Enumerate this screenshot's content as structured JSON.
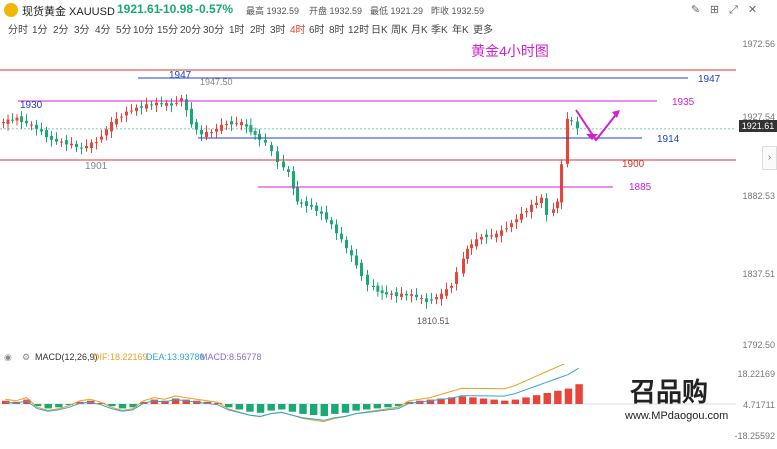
{
  "header": {
    "symbol": "现货黄金 XAUUSD",
    "price": "1921.61",
    "change": "-10.98",
    "change_pct": "-0.57%",
    "high_label": "最高 1932.59",
    "open_label": "开盘 1932.59",
    "low_label": "最低 1921.29",
    "prev_close_label": "昨收 1932.59",
    "price_color": "#19a974"
  },
  "timeframes": [
    "分时",
    "1分",
    "2分",
    "3分",
    "4分",
    "5分",
    "10分",
    "15分",
    "20分",
    "30分",
    "1时",
    "2时",
    "3时",
    "4时",
    "6时",
    "8时",
    "12时",
    "日K",
    "周K",
    "月K",
    "季K",
    "年K",
    "更多"
  ],
  "active_timeframe": "4时",
  "toolbar_icons": [
    "draw-icon",
    "adjust-icon",
    "fullscreen-icon",
    "close-icon"
  ],
  "chart": {
    "title": "黄金4小时图",
    "levels": [
      {
        "label": "1947",
        "color": "#1d3fc7"
      },
      {
        "label": "1935",
        "color": "#d11fd1"
      },
      {
        "label": "1914",
        "color": "#1d3fc7"
      },
      {
        "label": "1900",
        "color": "#e0332c"
      },
      {
        "label": "1885",
        "color": "#d11fd1"
      },
      {
        "label": "1930",
        "color": "#1d3fc7"
      }
    ],
    "annotations": [
      "1947.50",
      "1901",
      "1810.51"
    ],
    "axis_labels": [
      "1972.56",
      "1927.54",
      "1882.53",
      "1837.51",
      "1792.50"
    ],
    "current_price": "1921.61"
  },
  "macd": {
    "label": "MACD(12,26,9)",
    "dif": "DIF:18.22169",
    "dea": "DEA:13.93780",
    "macd_val": "MACD:8.56778",
    "axis_labels": [
      "18.22169",
      "4.71711",
      "-18.25592"
    ]
  },
  "watermark": {
    "name": "召品购",
    "url": "www.MPdaogou.com"
  },
  "colors": {
    "up": "#e8443a",
    "down": "#19a974",
    "accent": "#e8443a"
  }
}
